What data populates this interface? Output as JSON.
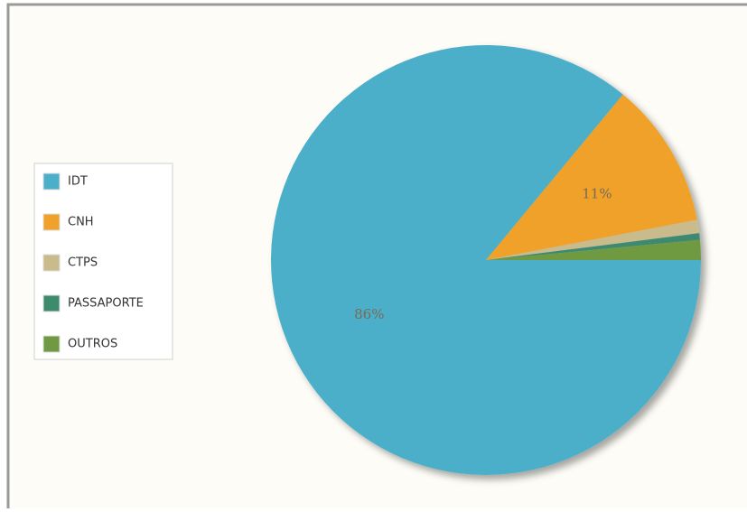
{
  "chart_data": {
    "type": "pie",
    "categories": [
      "IDT",
      "CNH",
      "CTPS",
      "PASSAPORTE",
      "OUTROS"
    ],
    "values": [
      86,
      11,
      1,
      0.5,
      1.5
    ],
    "value_labels": [
      "86%",
      "11%",
      null,
      null,
      null
    ],
    "colors": [
      "#4bafc9",
      "#f0a12a",
      "#c9bb8c",
      "#3e8a6f",
      "#6f9a43"
    ],
    "legend": "left"
  }
}
